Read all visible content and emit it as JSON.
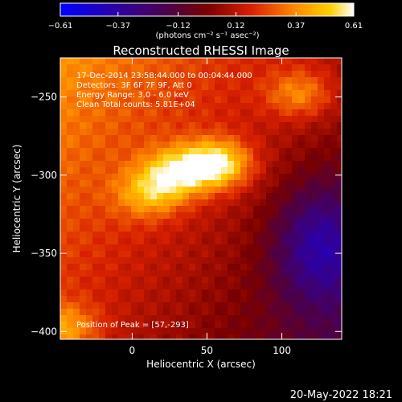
{
  "chart_data": {
    "type": "heatmap",
    "title": "Reconstructed RHESSI Image",
    "colorbar": {
      "ticks": [
        -0.61,
        -0.37,
        -0.12,
        0.12,
        0.37,
        0.61
      ],
      "tick_labels": [
        "−0.61",
        "−0.37",
        "−0.12",
        "0.12",
        "0.37",
        "0.61"
      ],
      "units_label": "(photons cm⁻² s⁻¹ asec⁻²)",
      "range": [
        -0.61,
        0.61
      ],
      "colormap": "sun"
    },
    "xlabel": "Heliocentric X (arcsec)",
    "ylabel": "Heliocentric Y (arcsec)",
    "xlim": [
      -48,
      140
    ],
    "ylim": [
      -405,
      -225
    ],
    "x_ticks": [
      0,
      50,
      100
    ],
    "x_tick_labels": [
      "0",
      "50",
      "100"
    ],
    "y_ticks": [
      -250,
      -300,
      -350,
      -400
    ],
    "y_tick_labels": [
      "−250",
      "−300",
      "−350",
      "−400"
    ],
    "annotations": [
      "17-Dec-2014 23:58:44.000 to 00:04:44.000",
      "Detectors: 3F 6F 7F 9F, Att 0",
      "Energy Range: 3.0 - 6.0 keV",
      "Clean    Total counts: 5.81E+04"
    ],
    "peak_label": "Position of Peak = [57,-293]",
    "peak": {
      "x": 57,
      "y": -293
    },
    "sources": [
      {
        "x": 57,
        "y": -293,
        "value": 0.61
      },
      {
        "x": 30,
        "y": -298,
        "value": 0.5
      },
      {
        "x": 12,
        "y": -312,
        "value": 0.42
      },
      {
        "x": 112,
        "y": -248,
        "value": 0.4
      },
      {
        "x": -45,
        "y": -398,
        "value": 0.4
      }
    ]
  },
  "footer": {
    "date": "20-May-2022 18:21"
  }
}
